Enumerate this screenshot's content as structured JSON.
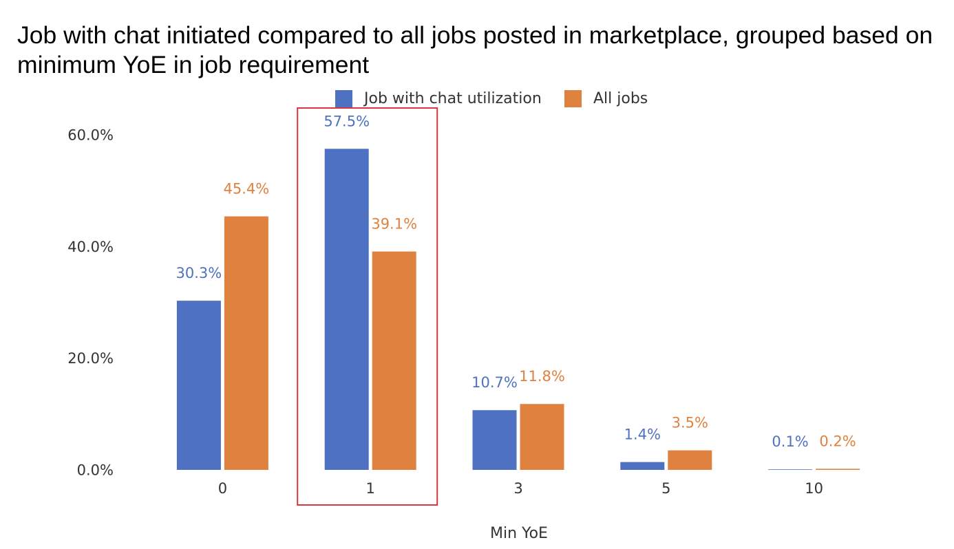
{
  "chart_data": {
    "type": "bar",
    "title": "Job with chat initiated compared to all jobs posted in marketplace, grouped based on minimum YoE in job requirement",
    "categories": [
      "0",
      "1",
      "3",
      "5",
      "10"
    ],
    "xlabel": "Min YoE",
    "ylim": [
      0,
      60
    ],
    "yticks": [
      0,
      20,
      40,
      60
    ],
    "ytick_labels": [
      "0.0%",
      "20.0%",
      "40.0%",
      "60.0%"
    ],
    "series": [
      {
        "name": "Job with chat utilization",
        "color": "#4e72c1",
        "values": [
          30.3,
          57.5,
          10.7,
          1.4,
          0.1
        ],
        "data_labels": [
          "30.3%",
          "57.5%",
          "10.7%",
          "1.4%",
          "0.1%"
        ]
      },
      {
        "name": "All jobs",
        "color": "#e0823f",
        "values": [
          45.4,
          39.1,
          11.8,
          3.5,
          0.2
        ],
        "data_labels": [
          "45.4%",
          "39.1%",
          "11.8%",
          "3.5%",
          "0.2%"
        ]
      }
    ],
    "legend": "top",
    "grid": false,
    "highlight": {
      "category": "1",
      "color": "#d9353b"
    }
  }
}
